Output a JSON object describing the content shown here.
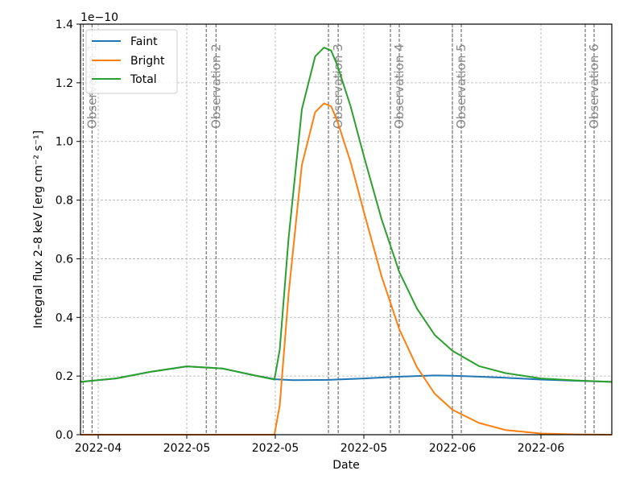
{
  "chart_data": {
    "type": "line",
    "xlabel": "Date",
    "ylabel": "Integral flux 2–8 keV [erg cm⁻² s⁻¹]",
    "y_offset_text": "1e−10",
    "ylim": [
      0,
      1.4e-10
    ],
    "xlim": [
      0,
      60
    ],
    "y_ticks": [
      0,
      2e-11,
      4e-11,
      6e-11,
      8e-11,
      1e-10,
      1.2e-10,
      1.4e-10
    ],
    "y_tick_labels": [
      "0.0",
      "0.2",
      "0.4",
      "0.6",
      "0.8",
      "1.0",
      "1.2",
      "1.4"
    ],
    "x_ticks": [
      {
        "x": 2,
        "label": "2022-04"
      },
      {
        "x": 12,
        "label": "2022-05"
      },
      {
        "x": 22,
        "label": "2022-05"
      },
      {
        "x": 32,
        "label": "2022-05"
      },
      {
        "x": 42,
        "label": "2022-06"
      },
      {
        "x": 52,
        "label": "2022-06"
      }
    ],
    "grid": true,
    "legend_position": "top-left",
    "series": [
      {
        "name": "Faint",
        "color": "#1f77b4",
        "x": [
          0,
          4,
          8,
          12,
          16,
          20,
          22,
          24,
          28,
          32,
          36,
          40,
          42,
          44,
          48,
          52,
          56,
          60
        ],
        "y": [
          1.8e-11,
          1.92e-11,
          2.15e-11,
          2.33e-11,
          2.26e-11,
          2e-11,
          1.89e-11,
          1.86e-11,
          1.87e-11,
          1.92e-11,
          1.98e-11,
          2.02e-11,
          2.01e-11,
          1.99e-11,
          1.94e-11,
          1.88e-11,
          1.84e-11,
          1.8e-11
        ]
      },
      {
        "name": "Bright",
        "color": "#ff7f0e",
        "x": [
          0,
          21.9,
          22.5,
          23.5,
          25.0,
          26.5,
          27.5,
          28.3,
          29.0,
          30.5,
          32.0,
          34.0,
          36.0,
          38.0,
          40.0,
          42.0,
          45.0,
          48.0,
          52.0,
          56.0,
          60.0
        ],
        "y": [
          0,
          0,
          1e-11,
          4.8e-11,
          9.2e-11,
          1.1e-10,
          1.13e-10,
          1.12e-10,
          1.07e-10,
          9.3e-11,
          7.6e-11,
          5.4e-11,
          3.6e-11,
          2.3e-11,
          1.4e-11,
          8.5e-12,
          4e-12,
          1.6e-12,
          4e-13,
          1e-13,
          0
        ]
      },
      {
        "name": "Total",
        "color": "#2ca02c",
        "x": [
          0,
          4,
          8,
          12,
          16,
          20,
          21.9,
          22.5,
          23.5,
          25.0,
          26.5,
          27.5,
          28.3,
          29.0,
          30.5,
          32.0,
          34.0,
          36.0,
          38.0,
          40.0,
          42.0,
          45.0,
          48.0,
          52.0,
          56.0,
          60.0
        ],
        "y": [
          1.8e-11,
          1.92e-11,
          2.15e-11,
          2.33e-11,
          2.26e-11,
          2e-11,
          1.88e-11,
          2.9e-11,
          6.7e-11,
          1.11e-10,
          1.29e-10,
          1.32e-10,
          1.31e-10,
          1.26e-10,
          1.12e-10,
          9.5e-11,
          7.35e-11,
          5.55e-11,
          4.3e-11,
          3.4e-11,
          2.86e-11,
          2.34e-11,
          2.1e-11,
          1.92e-11,
          1.85e-11,
          1.8e-11
        ]
      }
    ],
    "observations": [
      {
        "label": "Observation 1",
        "lines": [
          0.3,
          1.3
        ]
      },
      {
        "label": "Observation 2",
        "lines": [
          14.2,
          15.3
        ]
      },
      {
        "label": "Observation 3",
        "lines": [
          28.0,
          29.1
        ]
      },
      {
        "label": "Observation 4",
        "lines": [
          35.0,
          36.0
        ]
      },
      {
        "label": "Observation 5",
        "lines": [
          42.0,
          43.0
        ]
      },
      {
        "label": "Observation 6",
        "lines": [
          57.0,
          58.0
        ]
      }
    ]
  }
}
